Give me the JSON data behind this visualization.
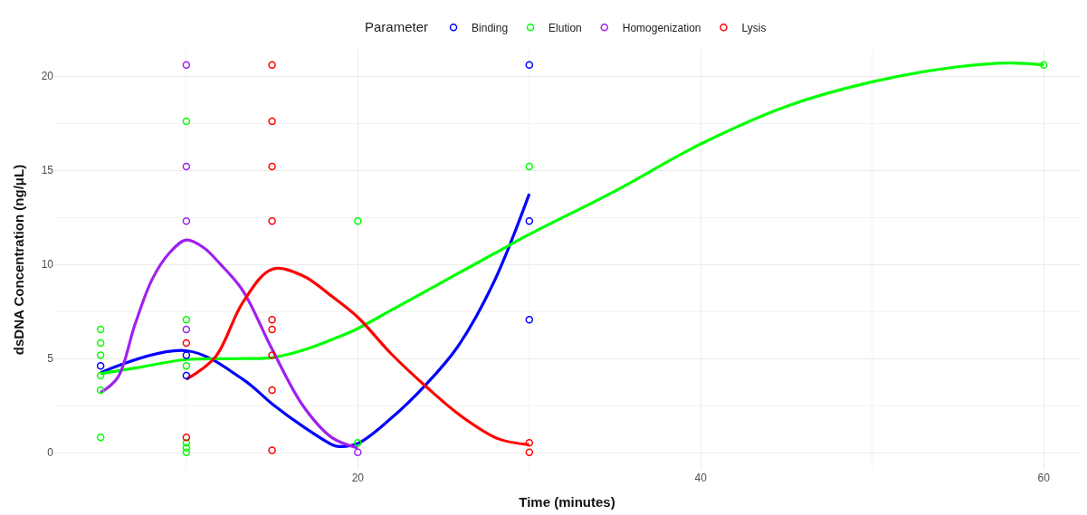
{
  "chart_data": {
    "type": "scatter",
    "xlabel": "Time (minutes)",
    "ylabel": "dsDNA Concentration (ng/μL)",
    "legend_title": "Parameter",
    "legend": "top",
    "grid": true,
    "marker": "circle",
    "xlim": [
      2.3,
      62.1
    ],
    "xticks": [
      20,
      40,
      60
    ],
    "ylim": [
      -0.9,
      21.4
    ],
    "yticks": [
      0,
      5,
      10,
      15,
      20
    ],
    "series": [
      {
        "name": "Binding",
        "color": "#0000ff",
        "x": [
          5,
          10,
          10,
          30,
          30,
          30
        ],
        "values": [
          4.62,
          5.18,
          4.1,
          20.6,
          12.3,
          7.07
        ]
      },
      {
        "name": "Elution",
        "color": "#00ff00",
        "x": [
          5,
          5,
          5,
          5,
          5,
          5,
          10,
          10,
          10,
          10,
          10,
          10,
          20,
          20,
          30,
          60
        ],
        "values": [
          6.55,
          5.83,
          5.18,
          4.1,
          3.33,
          0.82,
          17.6,
          7.07,
          4.62,
          0.53,
          0.26,
          0.02,
          12.3,
          0.53,
          15.2,
          20.6
        ]
      },
      {
        "name": "Homogenization",
        "color": "#a020f0",
        "x": [
          10,
          10,
          10,
          10,
          20
        ],
        "values": [
          20.6,
          15.2,
          12.3,
          6.55,
          0.02
        ]
      },
      {
        "name": "Lysis",
        "color": "#ff0000",
        "x": [
          10,
          10,
          15,
          15,
          15,
          15,
          15,
          15,
          15,
          15,
          15,
          30,
          30
        ],
        "values": [
          5.83,
          0.82,
          20.6,
          17.6,
          15.2,
          12.3,
          7.07,
          6.55,
          5.18,
          3.33,
          0.13,
          0.53,
          0.02
        ]
      },
      {
        "type": "line",
        "color": "#0000ff",
        "marker": "none",
        "x": [
          5,
          10,
          13.3,
          15,
          16.8,
          18.5,
          18.8,
          20,
          21.9,
          24,
          25.8,
          27.9,
          30
        ],
        "values": [
          4.26,
          5.42,
          3.9,
          2.6,
          1.4,
          0.43,
          0.34,
          0.5,
          1.8,
          3.65,
          5.6,
          9.0,
          13.75
        ]
      },
      {
        "type": "line",
        "color": "#00ff00",
        "marker": "none",
        "x": [
          5,
          7,
          10,
          13,
          15,
          17,
          19,
          20,
          22,
          25,
          28,
          30,
          35,
          40,
          45,
          50,
          55,
          58,
          60
        ],
        "values": [
          4.2,
          4.5,
          4.95,
          5.0,
          5.05,
          5.5,
          6.2,
          6.6,
          7.6,
          9.1,
          10.6,
          11.6,
          13.9,
          16.4,
          18.4,
          19.7,
          20.5,
          20.7,
          20.6
        ]
      },
      {
        "type": "line",
        "color": "#a020f0",
        "marker": "none",
        "x": [
          5,
          6,
          7,
          8,
          9,
          10,
          11,
          12,
          13.3,
          15,
          16.8,
          18.5,
          20
        ],
        "values": [
          3.2,
          4.0,
          6.8,
          9.2,
          10.6,
          11.3,
          10.9,
          10.0,
          8.6,
          5.5,
          2.5,
          0.8,
          0.26
        ]
      },
      {
        "type": "line",
        "color": "#ff0000",
        "marker": "none",
        "x": [
          10,
          11.7,
          13.3,
          15,
          16.8,
          18.5,
          20,
          21.9,
          24,
          26.1,
          28.2,
          30
        ],
        "values": [
          3.9,
          5.1,
          8.0,
          9.75,
          9.4,
          8.3,
          7.2,
          5.3,
          3.5,
          1.9,
          0.74,
          0.43
        ]
      }
    ]
  }
}
